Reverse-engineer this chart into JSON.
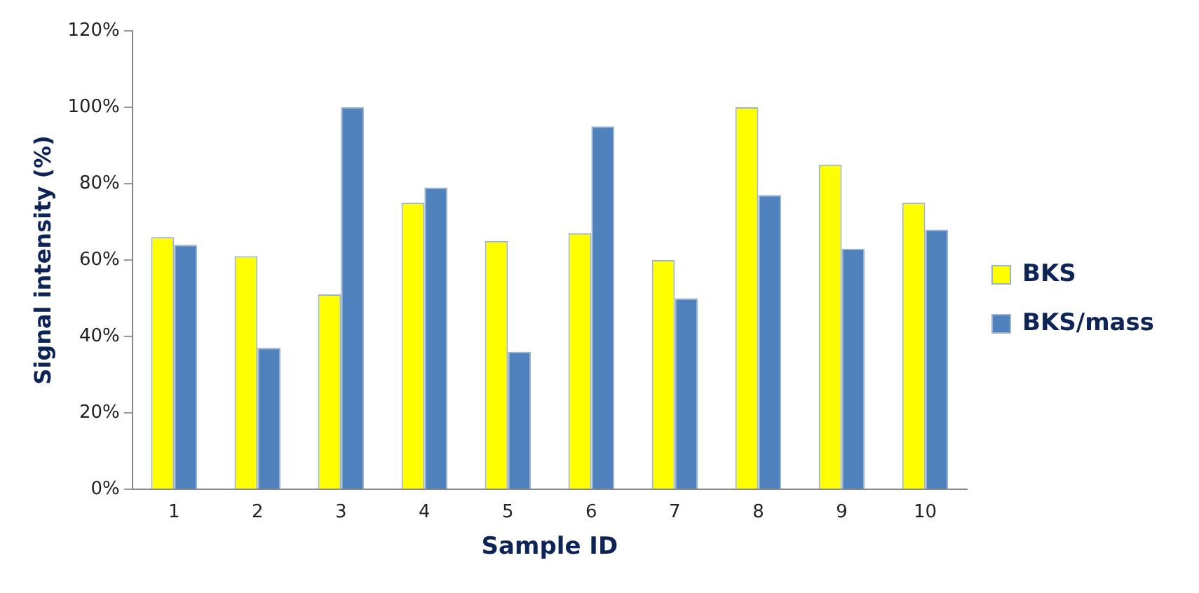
{
  "chart_data": {
    "type": "bar",
    "xlabel": "Sample ID",
    "ylabel": "Signal intensity (%)",
    "categories": [
      "1",
      "2",
      "3",
      "4",
      "5",
      "6",
      "7",
      "8",
      "9",
      "10"
    ],
    "series": [
      {
        "name": "BKS",
        "color": "#ffff00",
        "values": [
          66,
          61,
          51,
          75,
          65,
          67,
          60,
          100,
          85,
          75
        ]
      },
      {
        "name": "BKS/mass",
        "color": "#4f81bd",
        "values": [
          64,
          37,
          100,
          79,
          36,
          95,
          50,
          77,
          63,
          68
        ]
      }
    ],
    "ylim": [
      0,
      120
    ],
    "yticks": [
      {
        "value": 0,
        "label": "0%"
      },
      {
        "value": 20,
        "label": "20%"
      },
      {
        "value": 40,
        "label": "40%"
      },
      {
        "value": 60,
        "label": "60%"
      },
      {
        "value": 80,
        "label": "80%"
      },
      {
        "value": 100,
        "label": "100%"
      },
      {
        "value": 120,
        "label": "120%"
      }
    ],
    "grid": false,
    "legend": "right"
  }
}
